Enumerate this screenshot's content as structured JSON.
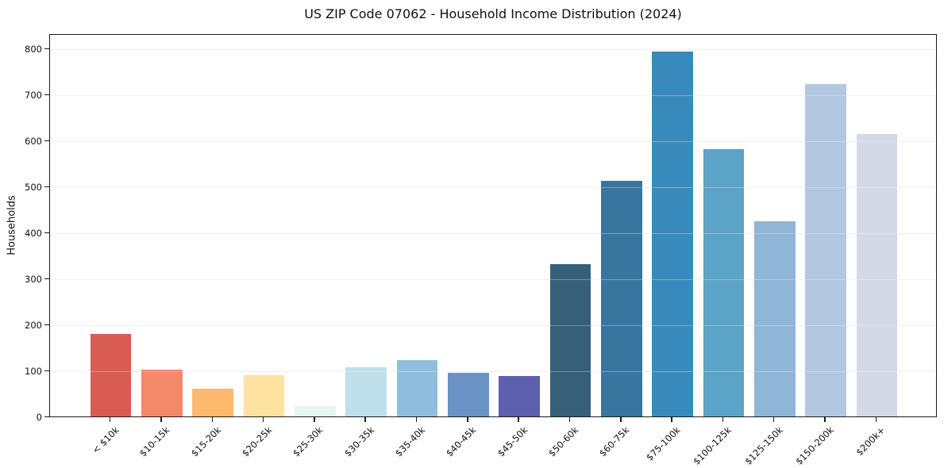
{
  "chart_data": {
    "type": "bar",
    "title": "US ZIP Code 07062 - Household Income Distribution (2024)",
    "xlabel": "",
    "ylabel": "Households",
    "categories": [
      "< $10k",
      "$10-15k",
      "$15-20k",
      "$20-25k",
      "$25-30k",
      "$30-35k",
      "$35-40k",
      "$40-45k",
      "$45-50k",
      "$50-60k",
      "$60-75k",
      "$75-100k",
      "$100-125k",
      "$125-150k",
      "$150-200k",
      "$200k+"
    ],
    "values": [
      179,
      101,
      61,
      89,
      22,
      106,
      123,
      95,
      88,
      330,
      511,
      792,
      580,
      423,
      721,
      614
    ],
    "bar_colors": [
      "#d85c51",
      "#f4886b",
      "#fdb96e",
      "#fee3a0",
      "#e6f5f0",
      "#bfdfeb",
      "#91bddc",
      "#6b93c4",
      "#5c60ae",
      "#36607a",
      "#38769f",
      "#398abc",
      "#5ca3c8",
      "#8fb5d7",
      "#b4c7e0",
      "#d5d8e6"
    ],
    "yticks": [
      0,
      100,
      200,
      300,
      400,
      500,
      600,
      700,
      800
    ],
    "ylim": [
      0,
      832
    ],
    "grid": "horizontal",
    "legend": "none",
    "background": "#ffffff",
    "gridline_color": "#ebebeb",
    "spine_color": "#1a1a1a"
  }
}
